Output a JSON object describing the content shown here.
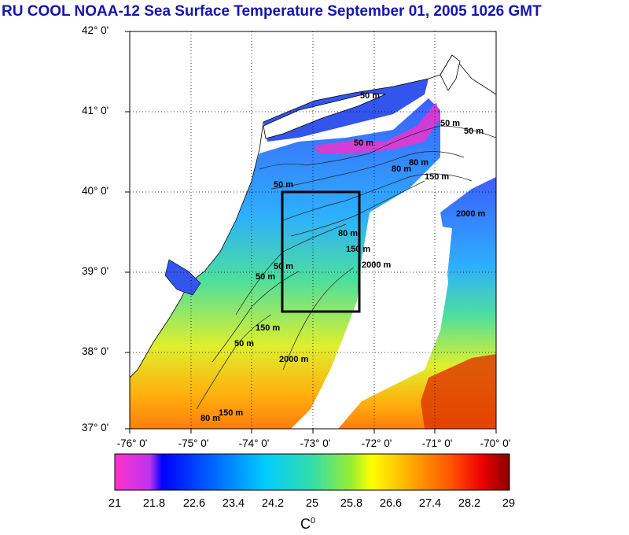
{
  "title": "RU COOL  NOAA-12 Sea Surface Temperature September 01, 2005 1026 GMT",
  "y_ticks": [
    {
      "label": "42° 0'"
    },
    {
      "label": "41° 0'"
    },
    {
      "label": "40° 0'"
    },
    {
      "label": "39° 0'"
    },
    {
      "label": "38° 0'"
    },
    {
      "label": "37° 0'"
    }
  ],
  "x_ticks": [
    {
      "label": "-76° 0'"
    },
    {
      "label": "-75° 0'"
    },
    {
      "label": "-74° 0'"
    },
    {
      "label": "-73° 0'"
    },
    {
      "label": "-72° 0'"
    },
    {
      "label": "-71° 0'"
    },
    {
      "label": "-70° 0'"
    }
  ],
  "map": {
    "lon_range": [
      -76,
      -70
    ],
    "lat_range": [
      37,
      42
    ],
    "grid": "dotted",
    "study_box": {
      "lon": [
        -73.5,
        -72.5
      ],
      "lat": [
        38.5,
        40
      ]
    },
    "isobath_labels": [
      "50 m",
      "50 m",
      "50 m",
      "80 m",
      "80 m",
      "150 m",
      "50 m",
      "80 m",
      "150 m",
      "2000 m",
      "2000 m",
      "50 m",
      "150 m",
      "2000 m",
      "50 m",
      "80 m",
      "150 m",
      "50 m",
      "50 m"
    ]
  },
  "colorbar": {
    "tick_labels": [
      "21",
      "21.8",
      "22.6",
      "23.4",
      "24.2",
      "25",
      "25.8",
      "26.6",
      "27.4",
      "28.2",
      "29"
    ],
    "units_label": "C",
    "units_sup": "0",
    "colors": [
      "#ff33cc",
      "#cc33dd",
      "#0000ff",
      "#0066ff",
      "#00ccff",
      "#33ddaa",
      "#99ee33",
      "#ffff00",
      "#ffaa00",
      "#ff5500",
      "#ff0000",
      "#880000"
    ]
  }
}
